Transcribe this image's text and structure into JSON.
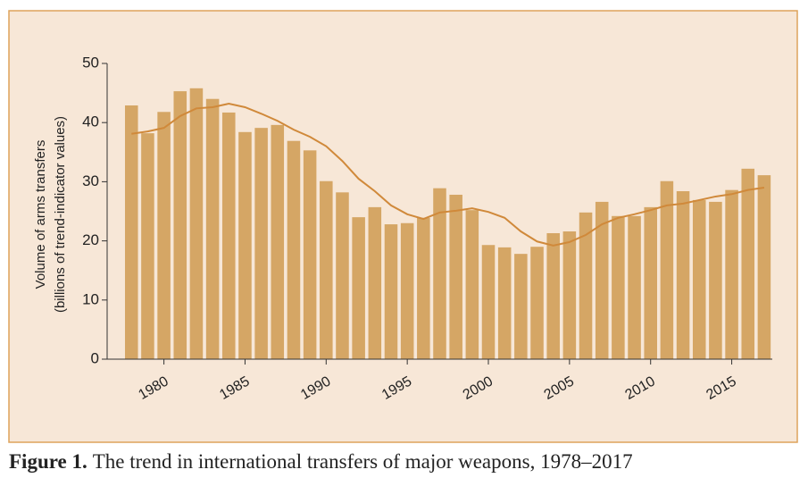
{
  "chart_data": {
    "type": "bar",
    "y_label": [
      "Volume of arms transfers",
      "(billions of trend-indicator values)"
    ],
    "caption_label": "Figure 1.",
    "caption_text": "The trend in international transfers of major weapons, 1978–2017",
    "x": [
      1978,
      1979,
      1980,
      1981,
      1982,
      1983,
      1984,
      1985,
      1986,
      1987,
      1988,
      1989,
      1990,
      1991,
      1992,
      1993,
      1994,
      1995,
      1996,
      1997,
      1998,
      1999,
      2000,
      2001,
      2002,
      2003,
      2004,
      2005,
      2006,
      2007,
      2008,
      2009,
      2010,
      2011,
      2012,
      2013,
      2014,
      2015,
      2016,
      2017
    ],
    "series": [
      {
        "type": "bar",
        "color": "#d5a665",
        "values": [
          42.9,
          38.2,
          41.8,
          45.3,
          45.8,
          44.0,
          41.7,
          38.4,
          39.1,
          39.6,
          36.9,
          35.3,
          30.1,
          28.2,
          24.0,
          25.7,
          22.8,
          23.0,
          23.9,
          28.9,
          27.8,
          25.2,
          19.3,
          18.9,
          17.8,
          19.0,
          21.3,
          21.6,
          24.8,
          26.6,
          24.2,
          24.2,
          25.7,
          30.1,
          28.4,
          26.9,
          26.6,
          28.6,
          32.2,
          31.1
        ]
      },
      {
        "type": "line",
        "color": "#d0893a",
        "values": [
          38.1,
          38.5,
          39.1,
          41.1,
          42.4,
          42.6,
          43.2,
          42.6,
          41.5,
          40.3,
          38.8,
          37.6,
          36.0,
          33.5,
          30.5,
          28.4,
          26.0,
          24.5,
          23.7,
          24.8,
          25.1,
          25.5,
          24.9,
          23.9,
          21.6,
          19.9,
          19.2,
          19.8,
          21.0,
          22.8,
          23.9,
          24.5,
          25.2,
          26.0,
          26.3,
          26.9,
          27.5,
          27.9,
          28.6,
          29.0
        ]
      }
    ],
    "xlim": [
      1976.5,
      2017.5
    ],
    "xticks": [
      1980,
      1985,
      1990,
      1995,
      2000,
      2005,
      2010,
      2015
    ],
    "ylim": [
      0,
      50
    ],
    "yticks": [
      0,
      10,
      20,
      30,
      40,
      50
    ]
  }
}
